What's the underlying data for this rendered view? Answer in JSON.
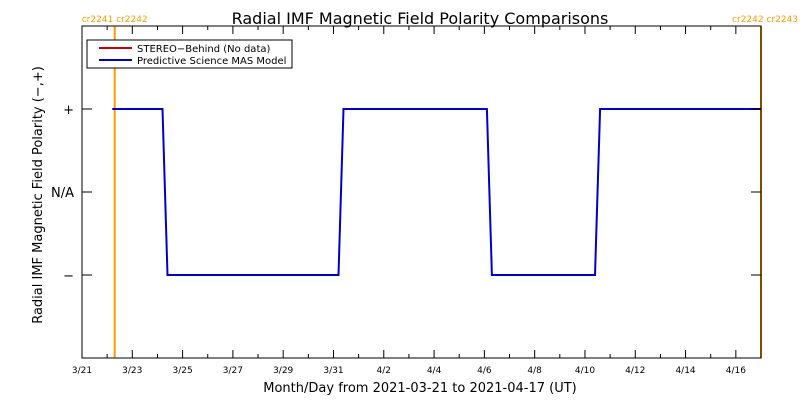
{
  "chart_data": {
    "type": "line",
    "title": "Radial IMF Magnetic Field Polarity Comparisons",
    "xlabel": "Month/Day from 2021-03-21 to 2021-04-17 (UT)",
    "ylabel": "Radial IMF Magnetic Field Polarity (−,+)",
    "x_unit": "days since 2021-03-21 00:00 UT",
    "xlim": [
      0,
      27
    ],
    "ylim": [
      -2,
      2
    ],
    "xticks": [
      {
        "x": 0,
        "label": "3/21"
      },
      {
        "x": 2,
        "label": "3/23"
      },
      {
        "x": 4,
        "label": "3/25"
      },
      {
        "x": 6,
        "label": "3/27"
      },
      {
        "x": 8,
        "label": "3/29"
      },
      {
        "x": 10,
        "label": "3/31"
      },
      {
        "x": 12,
        "label": "4/2"
      },
      {
        "x": 14,
        "label": "4/4"
      },
      {
        "x": 16,
        "label": "4/6"
      },
      {
        "x": 18,
        "label": "4/8"
      },
      {
        "x": 20,
        "label": "4/10"
      },
      {
        "x": 22,
        "label": "4/12"
      },
      {
        "x": 24,
        "label": "4/14"
      },
      {
        "x": 26,
        "label": "4/16"
      }
    ],
    "yticks": [
      {
        "y": 1,
        "label": "+"
      },
      {
        "y": 0,
        "label": "N/A"
      },
      {
        "y": -1,
        "label": "−"
      }
    ],
    "grid": false,
    "legend_position": "top-left",
    "series": [
      {
        "name": "STEREO−Behind (No data)",
        "color": "#cc0000",
        "x": [],
        "y": []
      },
      {
        "name": "Predictive Science MAS Model",
        "color": "#0000cc",
        "x": [
          1.2,
          3.2,
          3.4,
          10.2,
          10.4,
          16.1,
          16.3,
          20.4,
          20.6,
          27.0
        ],
        "y": [
          1,
          1,
          -1,
          -1,
          1,
          1,
          -1,
          -1,
          1,
          1
        ]
      }
    ],
    "carrington_markers": [
      {
        "x": 1.3,
        "label": "cr2241 cr2242",
        "color": "#ff9900"
      },
      {
        "x": 27.0,
        "label": "cr2242 cr2243",
        "color": "#ff9900"
      }
    ]
  }
}
